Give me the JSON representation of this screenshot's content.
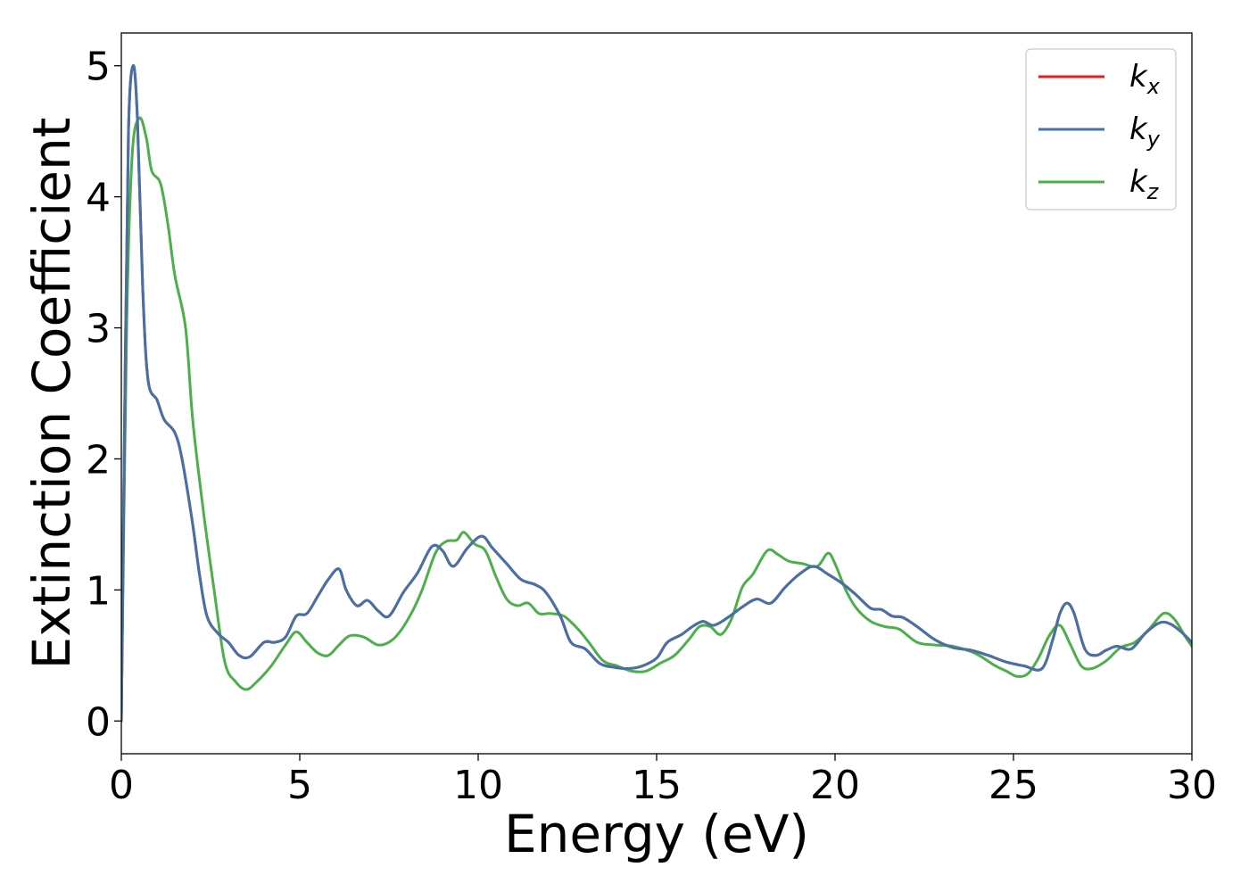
{
  "chart_data": {
    "type": "line",
    "xlabel": "Energy (eV)",
    "ylabel": "Extinction Coefficient",
    "xlim": [
      0,
      30
    ],
    "ylim": [
      -0.25,
      5.25
    ],
    "xticks": [
      "0",
      "5",
      "10",
      "15",
      "20",
      "25",
      "30"
    ],
    "yticks": [
      "0",
      "1",
      "2",
      "3",
      "4",
      "5"
    ],
    "grid": false,
    "legend": "top-right",
    "series": [
      {
        "name": "k",
        "sub": "x",
        "color": "#e41a1c",
        "points": [
          [
            0,
            0
          ],
          [
            0.1,
            2.5
          ],
          [
            0.2,
            4.5
          ],
          [
            0.33,
            5.0
          ],
          [
            0.45,
            4.6
          ],
          [
            0.6,
            3.3
          ],
          [
            0.75,
            2.6
          ],
          [
            1.0,
            2.45
          ],
          [
            1.2,
            2.3
          ],
          [
            1.5,
            2.2
          ],
          [
            1.7,
            2.0
          ],
          [
            2.0,
            1.5
          ],
          [
            2.2,
            1.1
          ],
          [
            2.4,
            0.8
          ],
          [
            2.7,
            0.67
          ],
          [
            3.0,
            0.6
          ],
          [
            3.3,
            0.5
          ],
          [
            3.6,
            0.49
          ],
          [
            4.0,
            0.6
          ],
          [
            4.3,
            0.6
          ],
          [
            4.6,
            0.64
          ],
          [
            4.9,
            0.8
          ],
          [
            5.2,
            0.82
          ],
          [
            5.5,
            0.95
          ],
          [
            5.8,
            1.08
          ],
          [
            6.1,
            1.16
          ],
          [
            6.3,
            1.0
          ],
          [
            6.6,
            0.88
          ],
          [
            6.9,
            0.92
          ],
          [
            7.2,
            0.84
          ],
          [
            7.5,
            0.8
          ],
          [
            7.9,
            0.98
          ],
          [
            8.3,
            1.13
          ],
          [
            8.7,
            1.33
          ],
          [
            9.0,
            1.3
          ],
          [
            9.3,
            1.18
          ],
          [
            9.7,
            1.32
          ],
          [
            10.1,
            1.41
          ],
          [
            10.4,
            1.32
          ],
          [
            10.8,
            1.2
          ],
          [
            11.2,
            1.08
          ],
          [
            11.6,
            1.04
          ],
          [
            11.9,
            0.98
          ],
          [
            12.3,
            0.8
          ],
          [
            12.6,
            0.6
          ],
          [
            13.0,
            0.55
          ],
          [
            13.4,
            0.44
          ],
          [
            13.8,
            0.41
          ],
          [
            14.2,
            0.4
          ],
          [
            14.6,
            0.42
          ],
          [
            15.0,
            0.48
          ],
          [
            15.3,
            0.6
          ],
          [
            15.7,
            0.66
          ],
          [
            16.0,
            0.72
          ],
          [
            16.3,
            0.76
          ],
          [
            16.6,
            0.73
          ],
          [
            17.0,
            0.79
          ],
          [
            17.4,
            0.87
          ],
          [
            17.8,
            0.93
          ],
          [
            18.2,
            0.9
          ],
          [
            18.6,
            1.02
          ],
          [
            19.0,
            1.12
          ],
          [
            19.4,
            1.18
          ],
          [
            19.8,
            1.12
          ],
          [
            20.2,
            1.05
          ],
          [
            20.6,
            0.96
          ],
          [
            21.0,
            0.86
          ],
          [
            21.3,
            0.85
          ],
          [
            21.6,
            0.8
          ],
          [
            21.9,
            0.79
          ],
          [
            22.3,
            0.72
          ],
          [
            22.8,
            0.62
          ],
          [
            23.3,
            0.56
          ],
          [
            23.8,
            0.54
          ],
          [
            24.3,
            0.5
          ],
          [
            24.8,
            0.45
          ],
          [
            25.3,
            0.42
          ],
          [
            25.8,
            0.4
          ],
          [
            26.1,
            0.62
          ],
          [
            26.3,
            0.82
          ],
          [
            26.5,
            0.9
          ],
          [
            26.7,
            0.82
          ],
          [
            27.0,
            0.55
          ],
          [
            27.3,
            0.5
          ],
          [
            27.6,
            0.54
          ],
          [
            27.9,
            0.57
          ],
          [
            28.3,
            0.55
          ],
          [
            28.7,
            0.67
          ],
          [
            29.1,
            0.75
          ],
          [
            29.4,
            0.74
          ],
          [
            29.7,
            0.68
          ],
          [
            30.0,
            0.6
          ]
        ]
      },
      {
        "name": "k",
        "sub": "y",
        "color": "#4472a8",
        "points": [
          [
            0,
            0
          ],
          [
            0.1,
            2.5
          ],
          [
            0.2,
            4.5
          ],
          [
            0.33,
            5.0
          ],
          [
            0.45,
            4.6
          ],
          [
            0.6,
            3.3
          ],
          [
            0.75,
            2.6
          ],
          [
            1.0,
            2.45
          ],
          [
            1.2,
            2.3
          ],
          [
            1.5,
            2.2
          ],
          [
            1.7,
            2.0
          ],
          [
            2.0,
            1.5
          ],
          [
            2.2,
            1.1
          ],
          [
            2.4,
            0.8
          ],
          [
            2.7,
            0.67
          ],
          [
            3.0,
            0.6
          ],
          [
            3.3,
            0.5
          ],
          [
            3.6,
            0.49
          ],
          [
            4.0,
            0.6
          ],
          [
            4.3,
            0.6
          ],
          [
            4.6,
            0.64
          ],
          [
            4.9,
            0.8
          ],
          [
            5.2,
            0.82
          ],
          [
            5.5,
            0.95
          ],
          [
            5.8,
            1.08
          ],
          [
            6.1,
            1.16
          ],
          [
            6.3,
            1.0
          ],
          [
            6.6,
            0.88
          ],
          [
            6.9,
            0.92
          ],
          [
            7.2,
            0.84
          ],
          [
            7.5,
            0.8
          ],
          [
            7.9,
            0.98
          ],
          [
            8.3,
            1.13
          ],
          [
            8.7,
            1.33
          ],
          [
            9.0,
            1.3
          ],
          [
            9.3,
            1.18
          ],
          [
            9.7,
            1.32
          ],
          [
            10.1,
            1.41
          ],
          [
            10.4,
            1.32
          ],
          [
            10.8,
            1.2
          ],
          [
            11.2,
            1.08
          ],
          [
            11.6,
            1.04
          ],
          [
            11.9,
            0.98
          ],
          [
            12.3,
            0.8
          ],
          [
            12.6,
            0.6
          ],
          [
            13.0,
            0.55
          ],
          [
            13.4,
            0.44
          ],
          [
            13.8,
            0.41
          ],
          [
            14.2,
            0.4
          ],
          [
            14.6,
            0.42
          ],
          [
            15.0,
            0.48
          ],
          [
            15.3,
            0.6
          ],
          [
            15.7,
            0.66
          ],
          [
            16.0,
            0.72
          ],
          [
            16.3,
            0.76
          ],
          [
            16.6,
            0.73
          ],
          [
            17.0,
            0.79
          ],
          [
            17.4,
            0.87
          ],
          [
            17.8,
            0.93
          ],
          [
            18.2,
            0.9
          ],
          [
            18.6,
            1.02
          ],
          [
            19.0,
            1.12
          ],
          [
            19.4,
            1.18
          ],
          [
            19.8,
            1.12
          ],
          [
            20.2,
            1.05
          ],
          [
            20.6,
            0.96
          ],
          [
            21.0,
            0.86
          ],
          [
            21.3,
            0.85
          ],
          [
            21.6,
            0.8
          ],
          [
            21.9,
            0.79
          ],
          [
            22.3,
            0.72
          ],
          [
            22.8,
            0.62
          ],
          [
            23.3,
            0.56
          ],
          [
            23.8,
            0.54
          ],
          [
            24.3,
            0.5
          ],
          [
            24.8,
            0.45
          ],
          [
            25.3,
            0.42
          ],
          [
            25.8,
            0.4
          ],
          [
            26.1,
            0.62
          ],
          [
            26.3,
            0.82
          ],
          [
            26.5,
            0.9
          ],
          [
            26.7,
            0.82
          ],
          [
            27.0,
            0.55
          ],
          [
            27.3,
            0.5
          ],
          [
            27.6,
            0.54
          ],
          [
            27.9,
            0.57
          ],
          [
            28.3,
            0.55
          ],
          [
            28.7,
            0.67
          ],
          [
            29.1,
            0.75
          ],
          [
            29.4,
            0.74
          ],
          [
            29.7,
            0.68
          ],
          [
            30.0,
            0.6
          ]
        ]
      },
      {
        "name": "k",
        "sub": "z",
        "color": "#4daf4a",
        "points": [
          [
            0,
            0
          ],
          [
            0.15,
            3.0
          ],
          [
            0.3,
            4.3
          ],
          [
            0.5,
            4.6
          ],
          [
            0.7,
            4.45
          ],
          [
            0.85,
            4.2
          ],
          [
            1.1,
            4.1
          ],
          [
            1.3,
            3.8
          ],
          [
            1.5,
            3.4
          ],
          [
            1.8,
            3.0
          ],
          [
            2.0,
            2.3
          ],
          [
            2.3,
            1.6
          ],
          [
            2.6,
            1.0
          ],
          [
            2.9,
            0.45
          ],
          [
            3.2,
            0.3
          ],
          [
            3.5,
            0.24
          ],
          [
            3.8,
            0.3
          ],
          [
            4.2,
            0.42
          ],
          [
            4.6,
            0.58
          ],
          [
            4.9,
            0.68
          ],
          [
            5.2,
            0.6
          ],
          [
            5.5,
            0.52
          ],
          [
            5.8,
            0.5
          ],
          [
            6.1,
            0.58
          ],
          [
            6.4,
            0.65
          ],
          [
            6.8,
            0.64
          ],
          [
            7.2,
            0.58
          ],
          [
            7.6,
            0.62
          ],
          [
            8.0,
            0.76
          ],
          [
            8.4,
            0.98
          ],
          [
            8.8,
            1.28
          ],
          [
            9.1,
            1.37
          ],
          [
            9.4,
            1.38
          ],
          [
            9.6,
            1.44
          ],
          [
            9.9,
            1.35
          ],
          [
            10.2,
            1.3
          ],
          [
            10.5,
            1.1
          ],
          [
            10.8,
            0.93
          ],
          [
            11.1,
            0.88
          ],
          [
            11.4,
            0.9
          ],
          [
            11.7,
            0.82
          ],
          [
            12.0,
            0.82
          ],
          [
            12.4,
            0.8
          ],
          [
            12.8,
            0.7
          ],
          [
            13.1,
            0.6
          ],
          [
            13.5,
            0.46
          ],
          [
            13.9,
            0.42
          ],
          [
            14.3,
            0.38
          ],
          [
            14.7,
            0.38
          ],
          [
            15.1,
            0.44
          ],
          [
            15.5,
            0.5
          ],
          [
            15.9,
            0.62
          ],
          [
            16.2,
            0.72
          ],
          [
            16.5,
            0.72
          ],
          [
            16.8,
            0.66
          ],
          [
            17.1,
            0.78
          ],
          [
            17.4,
            1.02
          ],
          [
            17.7,
            1.12
          ],
          [
            18.1,
            1.3
          ],
          [
            18.4,
            1.27
          ],
          [
            18.7,
            1.22
          ],
          [
            19.1,
            1.2
          ],
          [
            19.5,
            1.18
          ],
          [
            19.8,
            1.28
          ],
          [
            20.0,
            1.2
          ],
          [
            20.3,
            1.0
          ],
          [
            20.6,
            0.86
          ],
          [
            21.0,
            0.76
          ],
          [
            21.4,
            0.72
          ],
          [
            21.8,
            0.7
          ],
          [
            22.3,
            0.6
          ],
          [
            22.8,
            0.58
          ],
          [
            23.3,
            0.57
          ],
          [
            23.8,
            0.53
          ],
          [
            24.1,
            0.49
          ],
          [
            24.5,
            0.42
          ],
          [
            24.8,
            0.38
          ],
          [
            25.1,
            0.34
          ],
          [
            25.4,
            0.36
          ],
          [
            25.7,
            0.48
          ],
          [
            26.0,
            0.65
          ],
          [
            26.3,
            0.73
          ],
          [
            26.6,
            0.58
          ],
          [
            26.9,
            0.42
          ],
          [
            27.2,
            0.4
          ],
          [
            27.6,
            0.46
          ],
          [
            28.0,
            0.56
          ],
          [
            28.4,
            0.6
          ],
          [
            28.8,
            0.7
          ],
          [
            29.2,
            0.82
          ],
          [
            29.5,
            0.78
          ],
          [
            29.8,
            0.65
          ],
          [
            30.0,
            0.57
          ]
        ]
      }
    ]
  }
}
